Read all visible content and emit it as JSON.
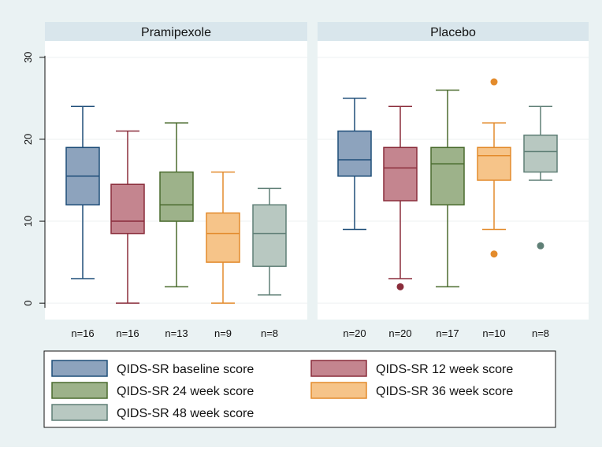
{
  "chart_data": {
    "type": "boxplot",
    "ylim": [
      -2,
      32
    ],
    "yticks": [
      0,
      10,
      20,
      30
    ],
    "panels": [
      {
        "title": "Pramipexole",
        "boxes": [
          {
            "series": "baseline",
            "n_label": "n=16",
            "min": 3,
            "q1": 12,
            "median": 15.5,
            "q3": 19,
            "max": 24,
            "outliers": []
          },
          {
            "series": "w12",
            "n_label": "n=16",
            "min": 0,
            "q1": 8.5,
            "median": 10,
            "q3": 14.5,
            "max": 21,
            "outliers": []
          },
          {
            "series": "w24",
            "n_label": "n=13",
            "min": 2,
            "q1": 10,
            "median": 12,
            "q3": 16,
            "max": 22,
            "outliers": []
          },
          {
            "series": "w36",
            "n_label": "n=9",
            "min": 0,
            "q1": 5,
            "median": 8.5,
            "q3": 11,
            "max": 16,
            "outliers": []
          },
          {
            "series": "w48",
            "n_label": "n=8",
            "min": 1,
            "q1": 4.5,
            "median": 8.5,
            "q3": 12,
            "max": 14,
            "outliers": []
          }
        ]
      },
      {
        "title": "Placebo",
        "boxes": [
          {
            "series": "baseline",
            "n_label": "n=20",
            "min": 9,
            "q1": 15.5,
            "median": 17.5,
            "q3": 21,
            "max": 25,
            "outliers": []
          },
          {
            "series": "w12",
            "n_label": "n=20",
            "min": 3,
            "q1": 12.5,
            "median": 16.5,
            "q3": 19,
            "max": 24,
            "outliers": [
              2
            ]
          },
          {
            "series": "w24",
            "n_label": "n=17",
            "min": 2,
            "q1": 12,
            "median": 17,
            "q3": 19,
            "max": 26,
            "outliers": []
          },
          {
            "series": "w36",
            "n_label": "n=10",
            "min": 9,
            "q1": 15,
            "median": 18,
            "q3": 19,
            "max": 22,
            "outliers": [
              27,
              6
            ]
          },
          {
            "series": "w48",
            "n_label": "n=8",
            "min": 15,
            "q1": 16,
            "median": 18.5,
            "q3": 20.5,
            "max": 24,
            "outliers": [
              7
            ]
          }
        ]
      }
    ],
    "legend": [
      {
        "key": "baseline",
        "label": "QIDS-SR baseline score",
        "fill": "#8da3bd",
        "stroke": "#1f4e79"
      },
      {
        "key": "w12",
        "label": "QIDS-SR 12 week score",
        "fill": "#c4858f",
        "stroke": "#8a2d3b"
      },
      {
        "key": "w24",
        "label": "QIDS-SR 24 week score",
        "fill": "#9db28a",
        "stroke": "#4a6b2e"
      },
      {
        "key": "w36",
        "label": "QIDS-SR 36 week score",
        "fill": "#f6c489",
        "stroke": "#e38b2c"
      },
      {
        "key": "w48",
        "label": "QIDS-SR 48 week score",
        "fill": "#b8c8c1",
        "stroke": "#5f7f76"
      }
    ]
  }
}
